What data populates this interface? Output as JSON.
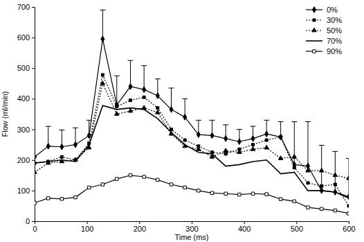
{
  "chart_data": {
    "type": "line",
    "x_label": "Time (ms)",
    "y_label": "Flow (ml/min)",
    "x": [
      0,
      26,
      52,
      78,
      104,
      130,
      157,
      183,
      209,
      235,
      261,
      287,
      313,
      339,
      365,
      391,
      417,
      443,
      470,
      496,
      522,
      548,
      574,
      600
    ],
    "xlim": [
      0,
      600
    ],
    "xticks": [
      0,
      100,
      200,
      300,
      400,
      500,
      600
    ],
    "ylim": [
      0,
      700
    ],
    "yticks": [
      0,
      100,
      200,
      300,
      400,
      500,
      600,
      700
    ],
    "grid": false,
    "legend": "upper right",
    "series": [
      {
        "name": "0%",
        "color": "#000000",
        "marker": "diamond",
        "line_style": "solid",
        "values": [
          210,
          245,
          243,
          250,
          280,
          595,
          380,
          440,
          430,
          410,
          365,
          340,
          283,
          280,
          270,
          260,
          270,
          285,
          275,
          185,
          180,
          100,
          95,
          80
        ],
        "errors": [
          null,
          65,
          55,
          55,
          50,
          95,
          95,
          85,
          78,
          55,
          70,
          60,
          47,
          50,
          45,
          40,
          40,
          45,
          50,
          140,
          145,
          148,
          133,
          125
        ]
      },
      {
        "name": "30%",
        "color": "#000000",
        "marker": "square",
        "line_style": "dotted",
        "values": [
          190,
          195,
          210,
          200,
          255,
          478,
          375,
          395,
          405,
          370,
          300,
          265,
          245,
          225,
          220,
          235,
          250,
          265,
          275,
          175,
          125,
          115,
          120,
          50
        ]
      },
      {
        "name": "50%",
        "color": "#000000",
        "marker": "triangle",
        "line_style": "dotted",
        "values": [
          160,
          190,
          195,
          200,
          240,
          450,
          350,
          360,
          370,
          355,
          285,
          245,
          235,
          210,
          230,
          225,
          235,
          240,
          205,
          210,
          165,
          165,
          150,
          140
        ]
      },
      {
        "name": "70%",
        "color": "#000000",
        "marker": "none",
        "line_style": "solid",
        "values": [
          190,
          195,
          200,
          195,
          250,
          378,
          365,
          370,
          365,
          335,
          290,
          250,
          225,
          220,
          180,
          185,
          195,
          200,
          155,
          160,
          100,
          100,
          95,
          75
        ]
      },
      {
        "name": "90%",
        "color": "#000000",
        "marker": "open_square",
        "line_style": "solid",
        "values": [
          60,
          75,
          73,
          78,
          110,
          120,
          138,
          150,
          145,
          135,
          120,
          110,
          100,
          92,
          90,
          87,
          90,
          88,
          72,
          65,
          45,
          40,
          35,
          25
        ]
      }
    ]
  }
}
